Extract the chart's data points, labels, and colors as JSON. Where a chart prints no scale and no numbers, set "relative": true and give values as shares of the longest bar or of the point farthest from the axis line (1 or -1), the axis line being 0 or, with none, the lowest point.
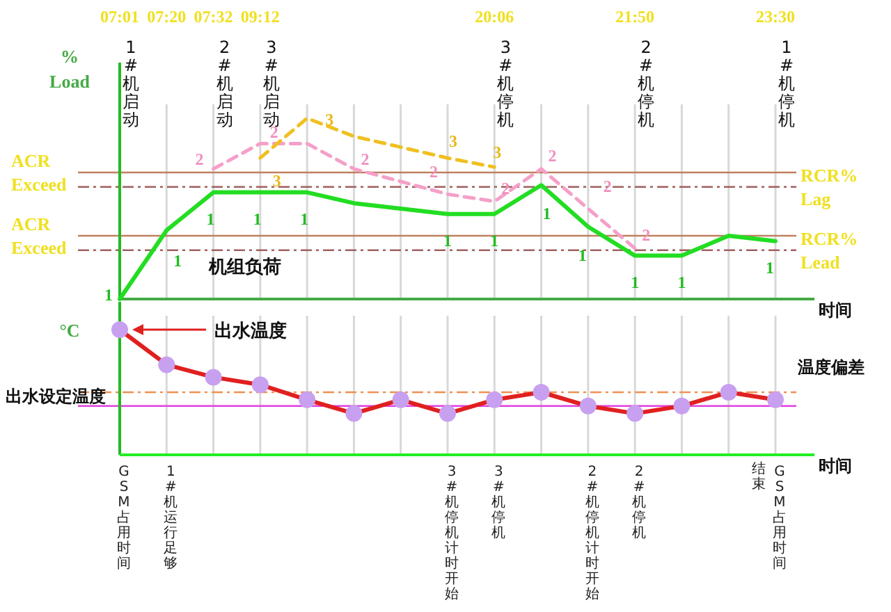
{
  "chart_data": [
    {
      "type": "line",
      "relative": true,
      "grid": "x",
      "xlabel": "时间",
      "ylabel": "% Load",
      "categories": [
        "07:01",
        "07:20",
        "07:32",
        "09:12",
        null,
        null,
        null,
        null,
        "20:06",
        null,
        null,
        "21:50",
        null,
        null,
        "23:30"
      ],
      "series": [
        {
          "color": "#22dd22",
          "line_style": "solid",
          "values": [
            0,
            0.38,
            0.59,
            0.59,
            0.59,
            0.53,
            0.5,
            0.47,
            0.47,
            0.63,
            0.4,
            0.24,
            0.24,
            0.35,
            0.32
          ]
        },
        {
          "color": "#f4a0c8",
          "line_style": "dashed",
          "values": [
            null,
            null,
            0.72,
            0.86,
            0.86,
            0.72,
            0.65,
            0.58,
            0.54,
            0.72,
            0.5,
            0.28,
            null,
            null,
            null
          ]
        },
        {
          "color": "#f0c020",
          "line_style": "dashed",
          "values": [
            null,
            null,
            null,
            0.78,
            1,
            0.9,
            0.84,
            0.78,
            0.73,
            null,
            null,
            null,
            null,
            null,
            null
          ]
        }
      ],
      "ref_lines": [
        {
          "axis": "y",
          "value": 0.7,
          "label": "ACR Exceed",
          "color": "#c08060",
          "line_style": "solid"
        },
        {
          "axis": "y",
          "value": 0.62,
          "label": "RCR% Lag",
          "color": "#a06060",
          "line_style": "dashed"
        },
        {
          "axis": "y",
          "value": 0.35,
          "label": "ACR Exceed",
          "color": "#c08060",
          "line_style": "solid"
        },
        {
          "axis": "y",
          "value": 0.27,
          "label": "RCR% Lead",
          "color": "#a06060",
          "line_style": "dashed"
        }
      ],
      "annotations": [
        "1#机启动",
        "2#机启动",
        "3#机启动",
        "3#机停机",
        "2#机停机",
        "1#机停机",
        "机组负荷",
        "1",
        "1",
        "1",
        "1",
        "1",
        "1",
        "1",
        "1",
        "1",
        "1",
        "1",
        "1",
        "2",
        "2",
        "2",
        "2",
        "2",
        "2",
        "2",
        "2",
        "3",
        "3",
        "3",
        "3"
      ]
    },
    {
      "type": "line",
      "relative": true,
      "grid": "x",
      "xlabel": "时间",
      "ylabel": "°C",
      "marker": "circle",
      "categories": [
        "GSM占用时间",
        "1#机运行足够",
        null,
        null,
        null,
        null,
        null,
        "3#机停机计时开始",
        "3#机停机",
        null,
        "2#机停机计时开始",
        "2#机停机",
        null,
        null,
        "GSM占用时间"
      ],
      "series": [
        {
          "color": "#e02020",
          "line_style": "solid",
          "values": [
            1,
            0.72,
            0.62,
            0.56,
            0.44,
            0.33,
            0.44,
            0.33,
            0.44,
            0.5,
            0.39,
            0.33,
            0.39,
            0.5,
            0.44
          ]
        }
      ],
      "ref_lines": [
        {
          "axis": "y",
          "value": 0.5,
          "label": "温度偏差",
          "color": "#f09050",
          "line_style": "dashed"
        },
        {
          "axis": "y",
          "value": 0.39,
          "label": "出水设定温度",
          "color": "#e040e0",
          "line_style": "solid"
        }
      ],
      "annotations": [
        "出水温度",
        "结束"
      ]
    }
  ]
}
